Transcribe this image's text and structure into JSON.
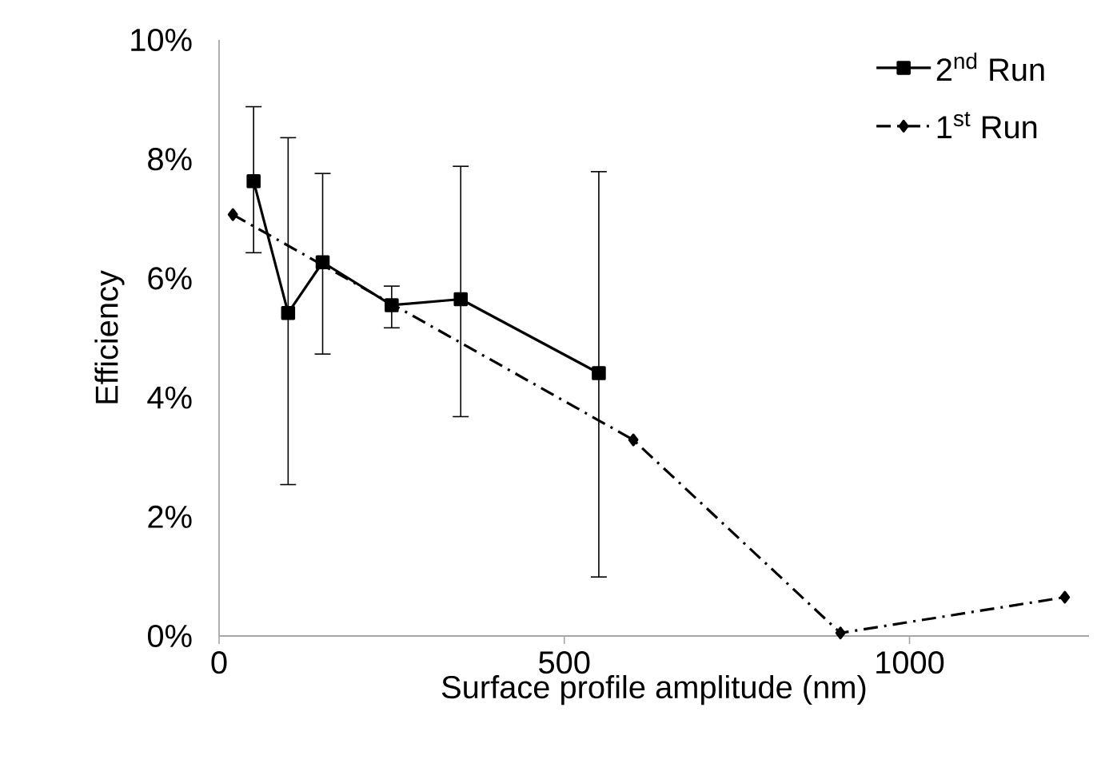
{
  "chart_data": {
    "type": "line",
    "xlabel": "Surface profile amplitude (nm)",
    "ylabel": "Efficiency",
    "xlim": [
      0,
      1260
    ],
    "xticks": [
      0,
      500,
      1000
    ],
    "ylim": [
      0,
      10
    ],
    "yticks": [
      {
        "value": 0,
        "label": "0%"
      },
      {
        "value": 2,
        "label": "2%"
      },
      {
        "value": 4,
        "label": "4%"
      },
      {
        "value": 6,
        "label": "6%"
      },
      {
        "value": 8,
        "label": "8%"
      },
      {
        "value": 10,
        "label": "10%"
      }
    ],
    "grid": false,
    "legend": "top right",
    "series": [
      {
        "name": "2$^{nd}$ Run",
        "color": "#000000",
        "marker": "square",
        "line_style": "solid",
        "x": [
          50,
          100,
          150,
          250,
          350,
          550
        ],
        "values": [
          7.63,
          5.42,
          6.27,
          5.55,
          5.65,
          4.41
        ],
        "errors": [
          [
            6.43,
            8.88
          ],
          [
            2.54,
            8.36
          ],
          [
            4.73,
            7.76
          ],
          [
            5.17,
            5.87
          ],
          [
            3.68,
            7.88
          ],
          [
            0.99,
            7.79
          ]
        ]
      },
      {
        "name": "1$^{st}$ Run",
        "color": "#000000",
        "marker": "diamond",
        "line_style": "dashed",
        "x": [
          20,
          600,
          900,
          1225
        ],
        "values": [
          7.07,
          3.29,
          0.05,
          0.65
        ]
      }
    ]
  }
}
